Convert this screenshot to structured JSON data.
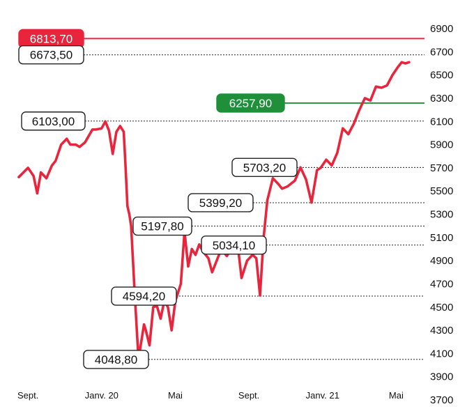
{
  "chart_data": {
    "type": "line",
    "title": "",
    "xlabel": "",
    "ylabel": "",
    "ylim": [
      3700,
      6900
    ],
    "yticks": [
      3700,
      3900,
      4100,
      4300,
      4500,
      4700,
      4900,
      5100,
      5300,
      5500,
      5700,
      5900,
      6100,
      6300,
      6500,
      6700,
      6900
    ],
    "grid": false,
    "colors": {
      "line": "#e8253c",
      "max_level": "#e8253c",
      "target_level": "#1f8f3a",
      "guide": "#222222",
      "label_border": "#222222"
    },
    "months": [
      {
        "label": "Sept.",
        "x": 0.5
      },
      {
        "label": "Janv. 20",
        "x": 4.5
      },
      {
        "label": "Mai",
        "x": 8.5
      },
      {
        "label": "Sept.",
        "x": 12.5
      },
      {
        "label": "Janv. 21",
        "x": 16.5
      },
      {
        "label": "Mai",
        "x": 20.5
      }
    ],
    "series": [
      {
        "x": [
          0,
          0.5,
          0.8,
          1.0,
          1.2,
          1.5,
          1.8,
          2.0,
          2.3,
          2.6,
          2.8,
          3.1,
          3.3,
          3.6,
          4.0,
          4.2,
          4.5,
          4.7,
          4.9,
          5.1,
          5.3,
          5.5,
          5.7,
          5.8,
          5.9,
          6.0,
          6.1,
          6.3,
          6.5,
          6.6,
          6.8,
          6.9,
          7.1,
          7.3,
          7.5,
          7.7,
          7.9,
          8.1,
          8.3,
          8.5,
          8.8,
          9.0,
          9.2,
          9.4,
          9.6,
          9.8,
          10.0,
          10.3,
          10.5,
          10.8,
          11.0,
          11.3,
          11.5,
          11.7,
          11.9,
          12.1,
          12.4,
          12.7,
          12.9,
          13.1,
          13.3,
          13.5,
          13.8,
          14.1,
          14.3,
          14.6,
          15.0,
          15.3,
          15.6,
          15.9,
          16.2,
          16.4,
          16.7,
          17.0,
          17.3,
          17.6,
          17.9,
          18.2,
          18.5,
          18.8,
          19.1,
          19.4,
          19.7,
          20.0,
          20.3,
          20.6,
          20.8,
          21.0,
          21.2
        ],
        "y": [
          5620,
          5700,
          5630,
          5480,
          5660,
          5610,
          5720,
          5760,
          5900,
          5950,
          5900,
          5900,
          5880,
          5920,
          6030,
          6030,
          6040,
          6100,
          6020,
          5820,
          6010,
          6060,
          6010,
          5700,
          5370,
          5300,
          5200,
          4600,
          4048.8,
          4150,
          4350,
          4300,
          4170,
          4500,
          4510,
          4400,
          4550,
          4500,
          4300,
          4550,
          4700,
          5150,
          4850,
          5000,
          4950,
          5040,
          4980,
          4920,
          4800,
          4920,
          5000,
          4940,
          4990,
          5034.1,
          5020,
          4750,
          4900,
          4950,
          4920,
          4600,
          5100,
          5420,
          5610,
          5560,
          5520,
          5540,
          5590,
          5703.2,
          5600,
          5400,
          5680,
          5700,
          5770,
          5720,
          5830,
          6040,
          5990,
          6080,
          6200,
          6300,
          6280,
          6400,
          6390,
          6410,
          6500,
          6570,
          6610,
          6600,
          6610
        ]
      }
    ],
    "levels": [
      {
        "value": 6813.7,
        "label": "6813,70",
        "style": "max"
      },
      {
        "value": 6673.5,
        "label": "6673,50",
        "style": "guide"
      },
      {
        "value": 6257.9,
        "label": "6257,90",
        "style": "target"
      },
      {
        "value": 6103.0,
        "label": "6103,00",
        "style": "guide"
      },
      {
        "value": 5703.2,
        "label": "5703,20",
        "style": "guide"
      },
      {
        "value": 5399.2,
        "label": "5399,20",
        "style": "guide"
      },
      {
        "value": 5197.8,
        "label": "5197,80",
        "style": "guide"
      },
      {
        "value": 5034.1,
        "label": "5034,10",
        "style": "guide"
      },
      {
        "value": 4594.2,
        "label": "4594,20",
        "style": "guide"
      },
      {
        "value": 4048.8,
        "label": "4048,80",
        "style": "guide"
      }
    ]
  }
}
